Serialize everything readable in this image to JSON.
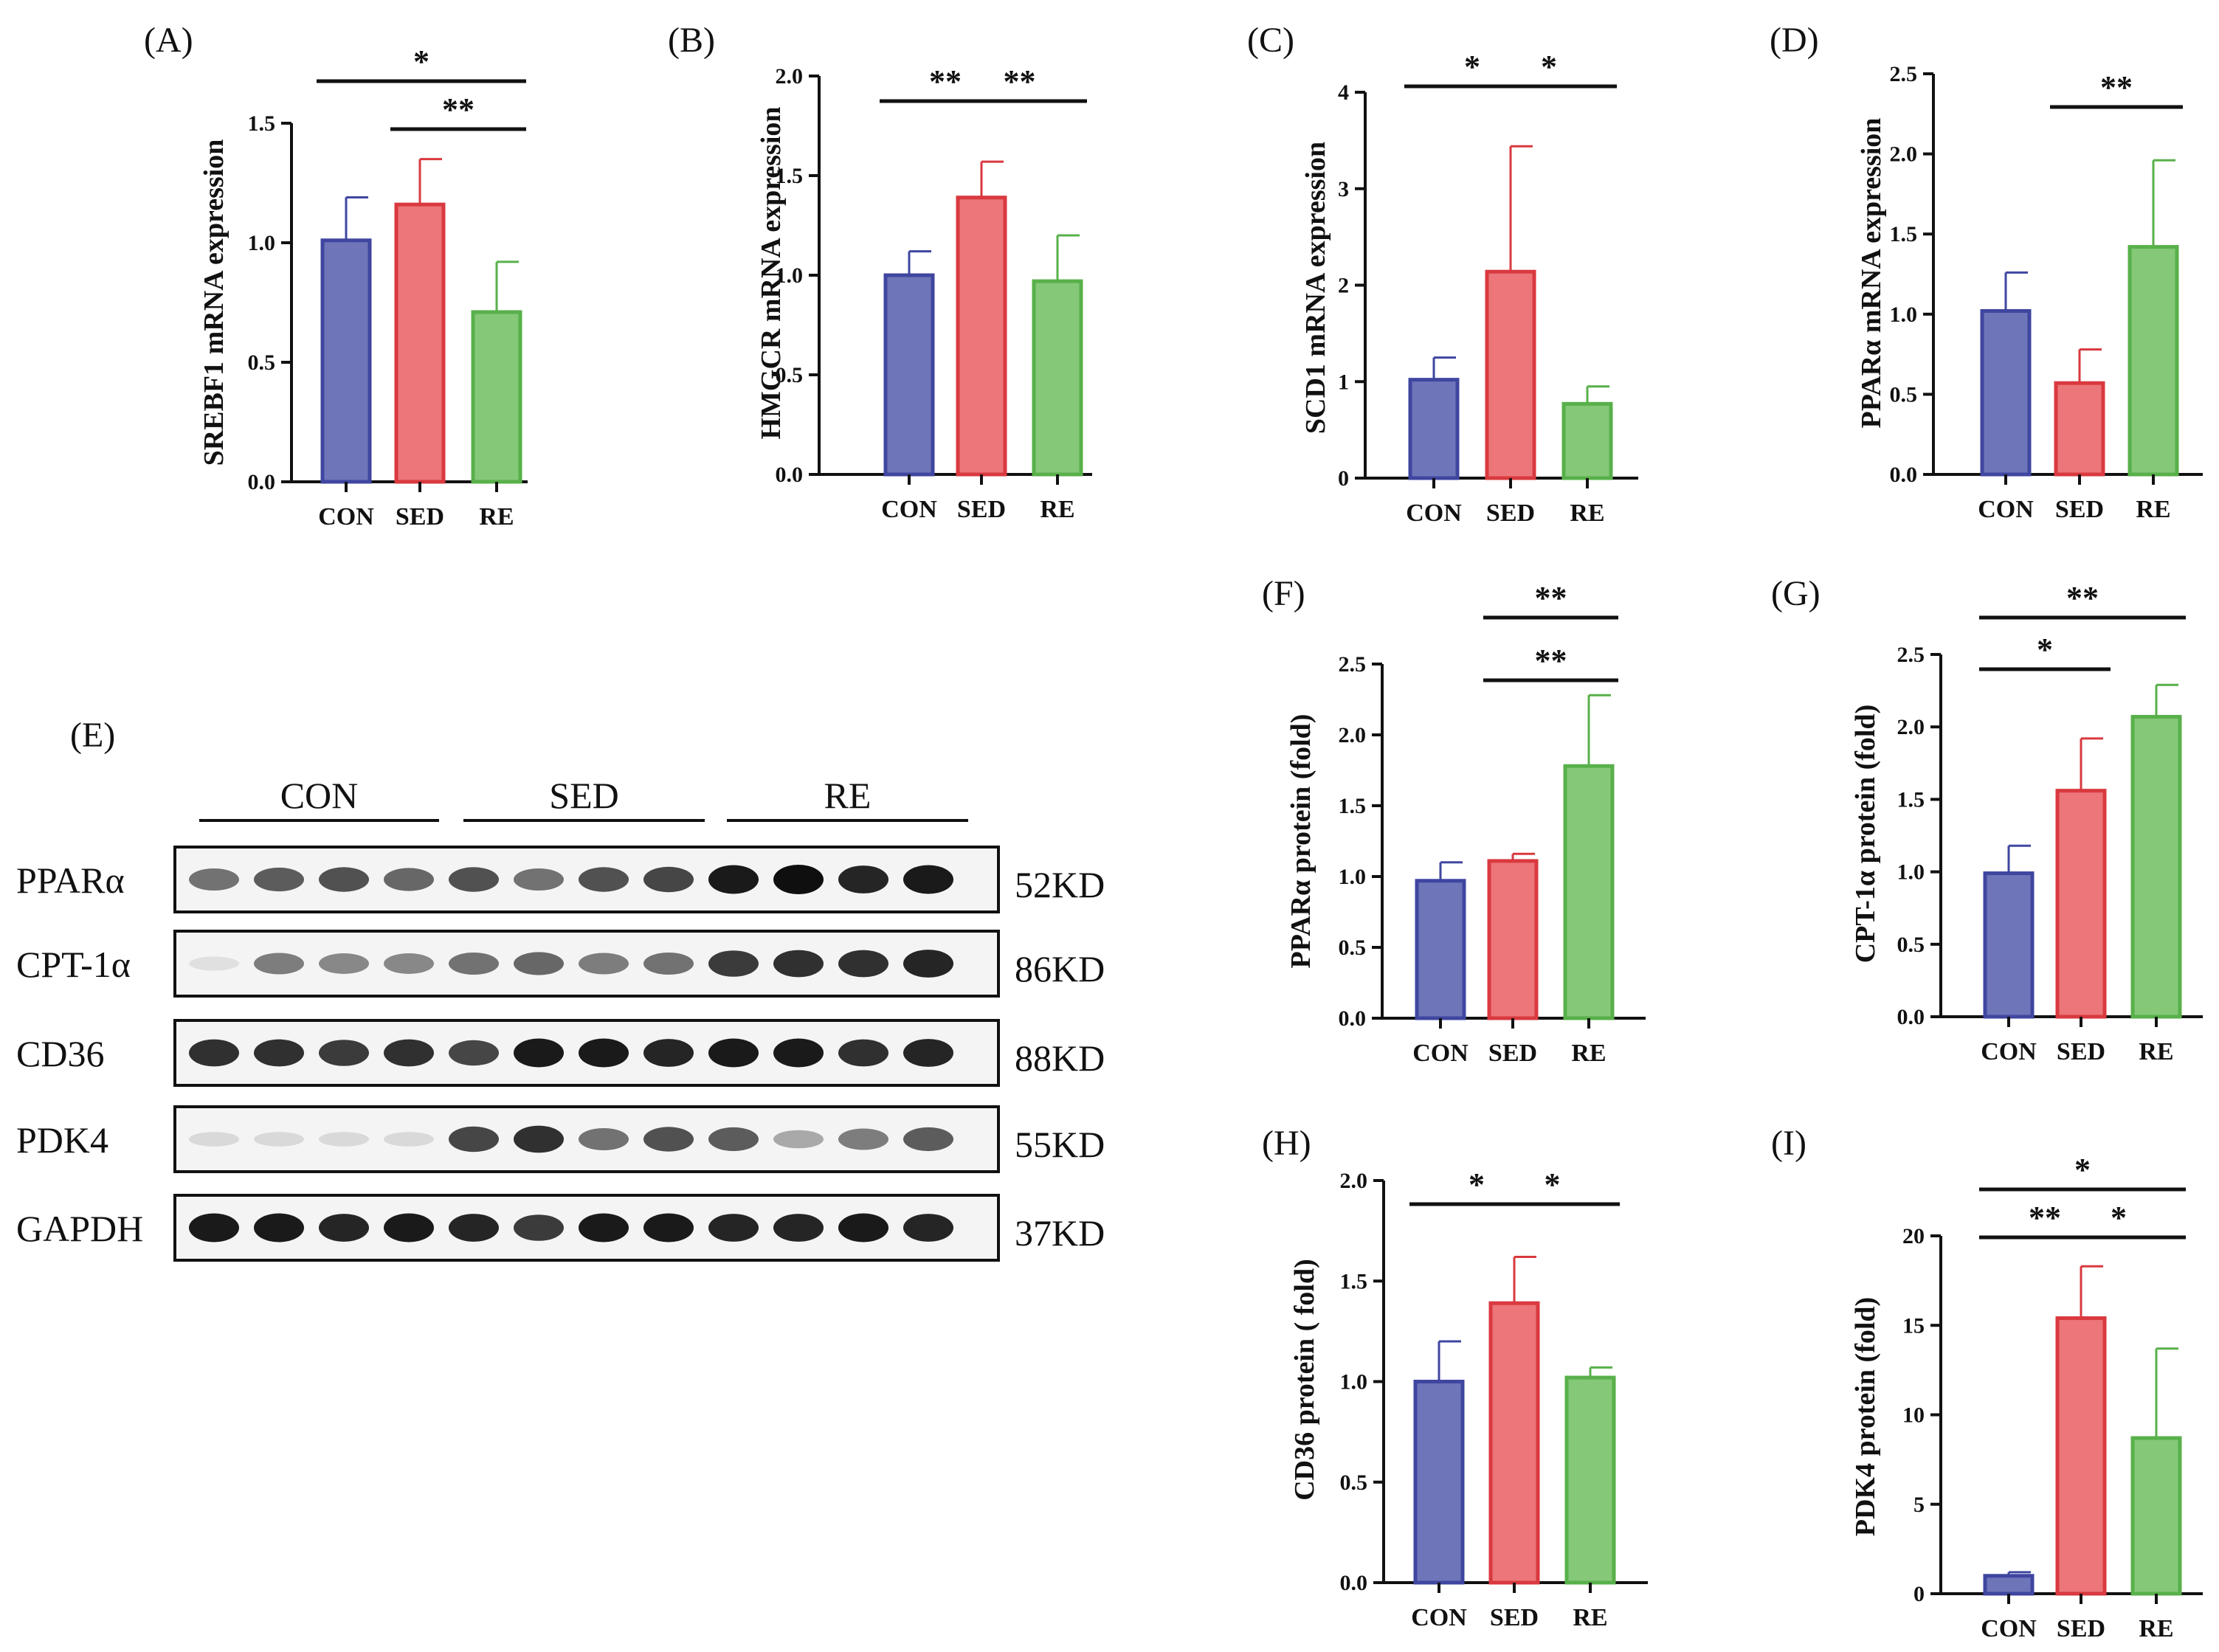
{
  "colors": {
    "CON": {
      "fill": "#6f75b9",
      "stroke": "#3f46a0"
    },
    "SED": {
      "fill": "#ec7679",
      "stroke": "#d9393f"
    },
    "RE": {
      "fill": "#84c878",
      "stroke": "#58b04a"
    }
  },
  "chart_data": [
    {
      "id": "A",
      "type": "bar",
      "panel_label": "(A)",
      "ylabel": "SREBF1 mRNA expression",
      "categories": [
        "CON",
        "SED",
        "RE"
      ],
      "values": [
        1.01,
        1.16,
        0.71
      ],
      "errors": [
        0.18,
        0.19,
        0.21
      ],
      "ylim": [
        0,
        1.5
      ],
      "yticks": [
        0.0,
        0.5,
        1.0,
        1.5
      ],
      "ytick_labels": [
        "0.0",
        "0.5",
        "1.0",
        "1.5"
      ],
      "significance": [
        {
          "from": 0,
          "to": 2,
          "label": "*"
        },
        {
          "from": 1,
          "to": 2,
          "label": "**"
        }
      ]
    },
    {
      "id": "B",
      "type": "bar",
      "panel_label": "(B)",
      "ylabel": "HMGCR mRNA expression",
      "categories": [
        "CON",
        "SED",
        "RE"
      ],
      "values": [
        1.0,
        1.39,
        0.97
      ],
      "errors": [
        0.12,
        0.18,
        0.23
      ],
      "ylim": [
        0,
        2.0
      ],
      "yticks": [
        0.0,
        0.5,
        1.0,
        1.5,
        2.0
      ],
      "ytick_labels": [
        "0.0",
        "0.5",
        "1.0",
        "1.5",
        "2.0"
      ],
      "significance": [
        {
          "from": 0,
          "to": 1,
          "label": "**"
        },
        {
          "from": 1,
          "to": 2,
          "label": "**"
        }
      ]
    },
    {
      "id": "C",
      "type": "bar",
      "panel_label": "(C)",
      "ylabel": "SCD1 mRNA expression",
      "categories": [
        "CON",
        "SED",
        "RE"
      ],
      "values": [
        1.02,
        2.14,
        0.77
      ],
      "errors": [
        0.23,
        1.3,
        0.18
      ],
      "ylim": [
        0,
        4
      ],
      "yticks": [
        0,
        1,
        2,
        3,
        4
      ],
      "ytick_labels": [
        "0",
        "1",
        "2",
        "3",
        "4"
      ],
      "significance": [
        {
          "from": 0,
          "to": 1,
          "label": "*"
        },
        {
          "from": 1,
          "to": 2,
          "label": "*"
        }
      ]
    },
    {
      "id": "D",
      "type": "bar",
      "panel_label": "(D)",
      "ylabel": "PPARα mRNA expression",
      "categories": [
        "CON",
        "SED",
        "RE"
      ],
      "values": [
        1.02,
        0.57,
        1.42
      ],
      "errors": [
        0.24,
        0.21,
        0.54
      ],
      "ylim": [
        0,
        2.5
      ],
      "yticks": [
        0.0,
        0.5,
        1.0,
        1.5,
        2.0,
        2.5
      ],
      "ytick_labels": [
        "0.0",
        "0.5",
        "1.0",
        "1.5",
        "2.0",
        "2.5"
      ],
      "significance": [
        {
          "from": 1,
          "to": 2,
          "label": "**"
        }
      ]
    },
    {
      "id": "F",
      "type": "bar",
      "panel_label": "(F)",
      "ylabel": "PPARα protein (fold)",
      "categories": [
        "CON",
        "SED",
        "RE"
      ],
      "values": [
        0.97,
        1.11,
        1.78
      ],
      "errors": [
        0.13,
        0.05,
        0.5
      ],
      "ylim": [
        0,
        2.5
      ],
      "yticks": [
        0.0,
        0.5,
        1.0,
        1.5,
        2.0,
        2.5
      ],
      "ytick_labels": [
        "0.0",
        "0.5",
        "1.0",
        "1.5",
        "2.0",
        "2.5"
      ],
      "significance": [
        {
          "from": 1,
          "to": 2,
          "label": "**"
        },
        {
          "from": 1,
          "to": 2,
          "label": "**"
        }
      ]
    },
    {
      "id": "G",
      "type": "bar",
      "panel_label": "(G)",
      "ylabel": "CPT-1α protein (fold)",
      "categories": [
        "CON",
        "SED",
        "RE"
      ],
      "values": [
        0.99,
        1.56,
        2.07
      ],
      "errors": [
        0.19,
        0.36,
        0.22
      ],
      "ylim": [
        0,
        2.5
      ],
      "yticks": [
        0.0,
        0.5,
        1.0,
        1.5,
        2.0,
        2.5
      ],
      "ytick_labels": [
        "0.0",
        "0.5",
        "1.0",
        "1.5",
        "2.0",
        "2.5"
      ],
      "significance": [
        {
          "from": 0,
          "to": 2,
          "label": "**"
        },
        {
          "from": 0,
          "to": 1,
          "label": "*"
        }
      ]
    },
    {
      "id": "H",
      "type": "bar",
      "panel_label": "(H)",
      "ylabel": "CD36 protein ( fold)",
      "categories": [
        "CON",
        "SED",
        "RE"
      ],
      "values": [
        1.0,
        1.39,
        1.02
      ],
      "errors": [
        0.2,
        0.23,
        0.05
      ],
      "ylim": [
        0,
        2.0
      ],
      "yticks": [
        0.0,
        0.5,
        1.0,
        1.5,
        2.0
      ],
      "ytick_labels": [
        "0.0",
        "0.5",
        "1.0",
        "1.5",
        "2.0"
      ],
      "significance": [
        {
          "from": 0,
          "to": 1,
          "label": "*"
        },
        {
          "from": 1,
          "to": 2,
          "label": "*"
        }
      ]
    },
    {
      "id": "I",
      "type": "bar",
      "panel_label": "(I)",
      "ylabel": "PDK4 protein (fold)",
      "categories": [
        "CON",
        "SED",
        "RE"
      ],
      "values": [
        1.0,
        15.4,
        8.7
      ],
      "errors": [
        0.2,
        2.9,
        5.0
      ],
      "ylim": [
        0,
        20
      ],
      "yticks": [
        0,
        5,
        10,
        15,
        20
      ],
      "ytick_labels": [
        "0",
        "5",
        "10",
        "15",
        "20"
      ],
      "significance": [
        {
          "from": 0,
          "to": 2,
          "label": "*"
        },
        {
          "from": 0,
          "to": 1,
          "label": "**"
        },
        {
          "from": 1,
          "to": 2,
          "label": "*"
        }
      ]
    }
  ],
  "western_blot": {
    "panel_label": "(E)",
    "groups": [
      "CON",
      "SED",
      "RE"
    ],
    "rows": [
      {
        "protein": "PPARα",
        "size": "52KD",
        "intensities": [
          0.55,
          0.65,
          0.7,
          0.6,
          0.7,
          0.55,
          0.7,
          0.75,
          0.95,
          1.0,
          0.9,
          0.95
        ]
      },
      {
        "protein": "CPT-1α",
        "size": "86KD",
        "intensities": [
          0.05,
          0.5,
          0.45,
          0.45,
          0.55,
          0.6,
          0.5,
          0.55,
          0.8,
          0.85,
          0.85,
          0.9
        ]
      },
      {
        "protein": "CD36",
        "size": "88KD",
        "intensities": [
          0.85,
          0.85,
          0.8,
          0.85,
          0.75,
          0.95,
          0.95,
          0.9,
          0.95,
          0.95,
          0.85,
          0.9
        ]
      },
      {
        "protein": "PDK4",
        "size": "55KD",
        "intensities": [
          0.08,
          0.08,
          0.08,
          0.08,
          0.75,
          0.85,
          0.55,
          0.7,
          0.65,
          0.3,
          0.5,
          0.65
        ]
      },
      {
        "protein": "GAPDH",
        "size": "37KD",
        "intensities": [
          0.95,
          0.95,
          0.9,
          0.95,
          0.9,
          0.8,
          0.95,
          0.95,
          0.9,
          0.9,
          0.95,
          0.9
        ]
      }
    ]
  }
}
